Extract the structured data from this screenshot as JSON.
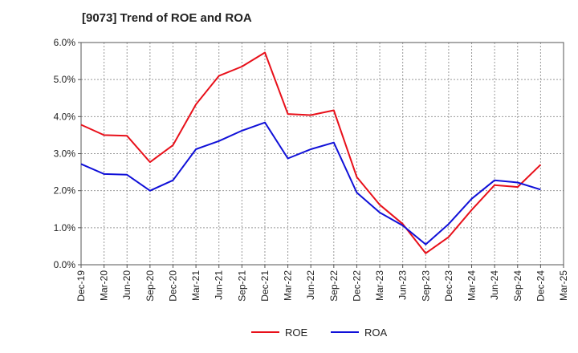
{
  "chart_data": {
    "type": "line",
    "title": "[9073]  Trend of ROE and ROA",
    "xlabel": "",
    "ylabel": "",
    "x": [
      "Dec-19",
      "Mar-20",
      "Jun-20",
      "Sep-20",
      "Dec-20",
      "Mar-21",
      "Jun-21",
      "Sep-21",
      "Dec-21",
      "Mar-22",
      "Jun-22",
      "Sep-22",
      "Dec-22",
      "Mar-23",
      "Jun-23",
      "Sep-23",
      "Dec-23",
      "Mar-24",
      "Jun-24",
      "Sep-24",
      "Dec-24",
      "Mar-25"
    ],
    "ylim": [
      0,
      6
    ],
    "y_ticks": [
      0,
      1,
      2,
      3,
      4,
      5,
      6
    ],
    "y_tick_labels": [
      "0.0%",
      "1.0%",
      "2.0%",
      "3.0%",
      "4.0%",
      "5.0%",
      "6.0%"
    ],
    "grid": true,
    "legend_position": "bottom",
    "series": [
      {
        "name": "ROE",
        "color": "#e8101a",
        "values": [
          3.78,
          3.5,
          3.48,
          2.77,
          3.23,
          4.33,
          5.1,
          5.35,
          5.73,
          4.07,
          4.04,
          4.17,
          2.37,
          1.62,
          1.1,
          0.31,
          0.75,
          1.48,
          2.15,
          2.1,
          2.7,
          null
        ]
      },
      {
        "name": "ROA",
        "color": "#1010d8",
        "values": [
          2.72,
          2.45,
          2.43,
          2.0,
          2.28,
          3.12,
          3.34,
          3.62,
          3.84,
          2.87,
          3.12,
          3.3,
          1.95,
          1.41,
          1.06,
          0.55,
          1.1,
          1.78,
          2.28,
          2.22,
          2.03,
          null
        ]
      }
    ]
  }
}
